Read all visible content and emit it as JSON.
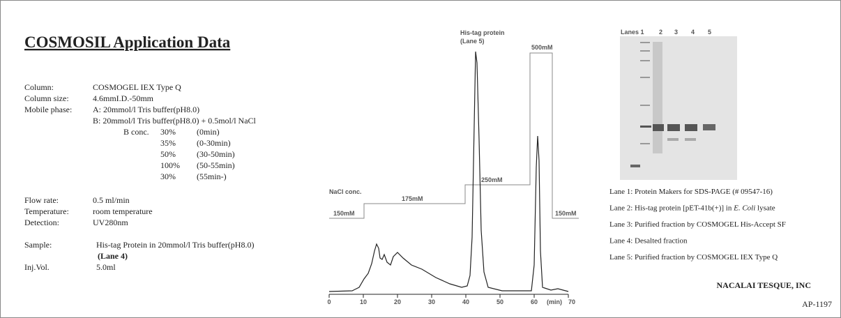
{
  "title": "COSMOSIL Application Data",
  "conditions": [
    {
      "label": "Column:",
      "value": "COSMOGEL IEX Type Q"
    },
    {
      "label": "Column size:",
      "value": "4.6mmI.D.-50mm"
    },
    {
      "label": "Mobile phase:",
      "value": "A: 20mmol/l Tris buffer(pH8.0)"
    }
  ],
  "mobile_phase_b": "B: 20mmol/l Tris buffer(pH8.0) + 0.5mol/l NaCl",
  "gradient": {
    "label": "B conc.",
    "rows": [
      [
        "30%",
        "(0min)"
      ],
      [
        "35%",
        "(0-30min)"
      ],
      [
        "50%",
        "(30-50min)"
      ],
      [
        "100%",
        "(50-55min)"
      ],
      [
        "30%",
        "(55min-)"
      ]
    ]
  },
  "conditions2": [
    {
      "label": "Flow rate:",
      "value": "0.5 ml/min"
    },
    {
      "label": "Temperature:",
      "value": "room temperature"
    },
    {
      "label": "Detection:",
      "value": "UV280nm"
    }
  ],
  "sample": {
    "label": "Sample:",
    "value": "His-tag Protein in 20mmol/l Tris buffer(pH8.0)",
    "note": "(Lane 4)"
  },
  "injection": {
    "label": "Inj.Vol.",
    "value": "5.0ml"
  },
  "chromatogram": {
    "peak_label": [
      "His-tag protein",
      "(Lane 5)"
    ],
    "nacl_label": "NaCl conc.",
    "steps": [
      "150mM",
      "175mM",
      "250mM",
      "500mM",
      "150mM"
    ],
    "x_ticks": [
      0,
      10,
      20,
      30,
      40,
      50,
      60,
      70
    ],
    "x_unit": "(min)"
  },
  "gel": {
    "lanes": [
      "Lanes 1",
      "2",
      "3",
      "4",
      "5"
    ]
  },
  "legend": [
    [
      "Lane 1: Protein Makers for SDS-PAGE (# 09547-16)"
    ],
    [
      "Lane 2: His-tag protein [pET-41b(+)] in ",
      "E. Coli",
      " lysate"
    ],
    [
      "Lane 3: Purified fraction by COSMOGEL His-Accept SF"
    ],
    [
      "Lane 4: Desalted fraction"
    ],
    [
      "Lane 5: Purified fraction by COSMOGEL IEX Type Q"
    ]
  ],
  "company": "NACALAI TESQUE, INC",
  "code": "AP-1197"
}
